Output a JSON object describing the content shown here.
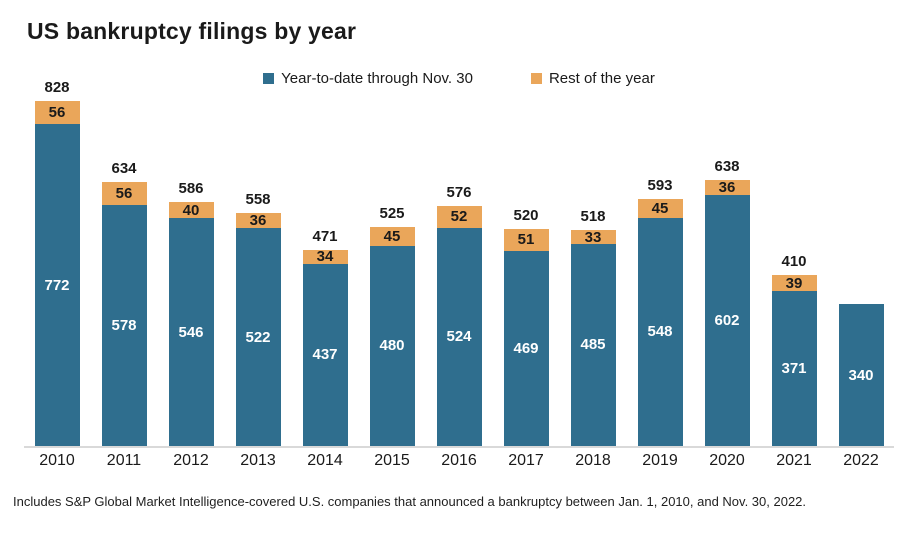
{
  "title": "US bankruptcy filings by year",
  "legend": [
    {
      "label": "Year-to-date through Nov. 30",
      "color": "#2F6E8E"
    },
    {
      "label": "Rest of the year",
      "color": "#EAA65A"
    }
  ],
  "footnote": "Includes S&P Global Market Intelligence-covered U.S. companies that announced a bankruptcy between Jan. 1, 2010, and Nov. 30, 2022.",
  "colors": {
    "ytd": "#2F6E8E",
    "rest": "#EAA65A",
    "baseline": "#D9D9D9",
    "label_on_ytd": "#FFFFFF",
    "label_on_rest": "#1A1A1A",
    "text": "#1A1A1A"
  },
  "chart_data": {
    "type": "bar",
    "stacked": true,
    "title": "US bankruptcy filings by year",
    "categories": [
      "2010",
      "2011",
      "2012",
      "2013",
      "2014",
      "2015",
      "2016",
      "2017",
      "2018",
      "2019",
      "2020",
      "2021",
      "2022"
    ],
    "series": [
      {
        "name": "Year-to-date through Nov. 30",
        "values": [
          772,
          578,
          546,
          522,
          437,
          480,
          524,
          469,
          485,
          548,
          602,
          371,
          340
        ]
      },
      {
        "name": "Rest of the year",
        "values": [
          56,
          56,
          40,
          36,
          34,
          45,
          52,
          51,
          33,
          45,
          36,
          39,
          null
        ]
      }
    ],
    "totals": [
      828,
      634,
      586,
      558,
      471,
      525,
      576,
      520,
      518,
      593,
      638,
      410,
      null
    ],
    "xlabel": "",
    "ylabel": "",
    "ylim": [
      0,
      850
    ],
    "grid": false,
    "legend_position": "top-center",
    "value_labels": "inside-segments",
    "total_labels": "above-bars"
  }
}
